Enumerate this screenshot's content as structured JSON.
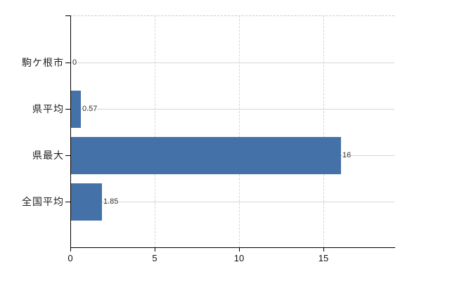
{
  "chart_data": {
    "type": "bar",
    "orientation": "horizontal",
    "title": "",
    "xlabel": "",
    "ylabel": "",
    "categories": [
      "駒ケ根市",
      "県平均",
      "県最大",
      "全国平均"
    ],
    "values": [
      0,
      0.57,
      16,
      1.85
    ],
    "data_labels": [
      "0",
      "0.57",
      "16",
      "1.85"
    ],
    "xlim": [
      0,
      19.2
    ],
    "x_tick_values": [
      0,
      5,
      10,
      15
    ],
    "x_tick_labels": [
      "0",
      "5",
      "10",
      "15"
    ],
    "grid": true,
    "legend": false,
    "colors": {
      "bar": "#4471a7",
      "gridline": "#d6d6d6",
      "axis": "#000000",
      "category_text": "#222222",
      "value_text": "#333333"
    }
  }
}
